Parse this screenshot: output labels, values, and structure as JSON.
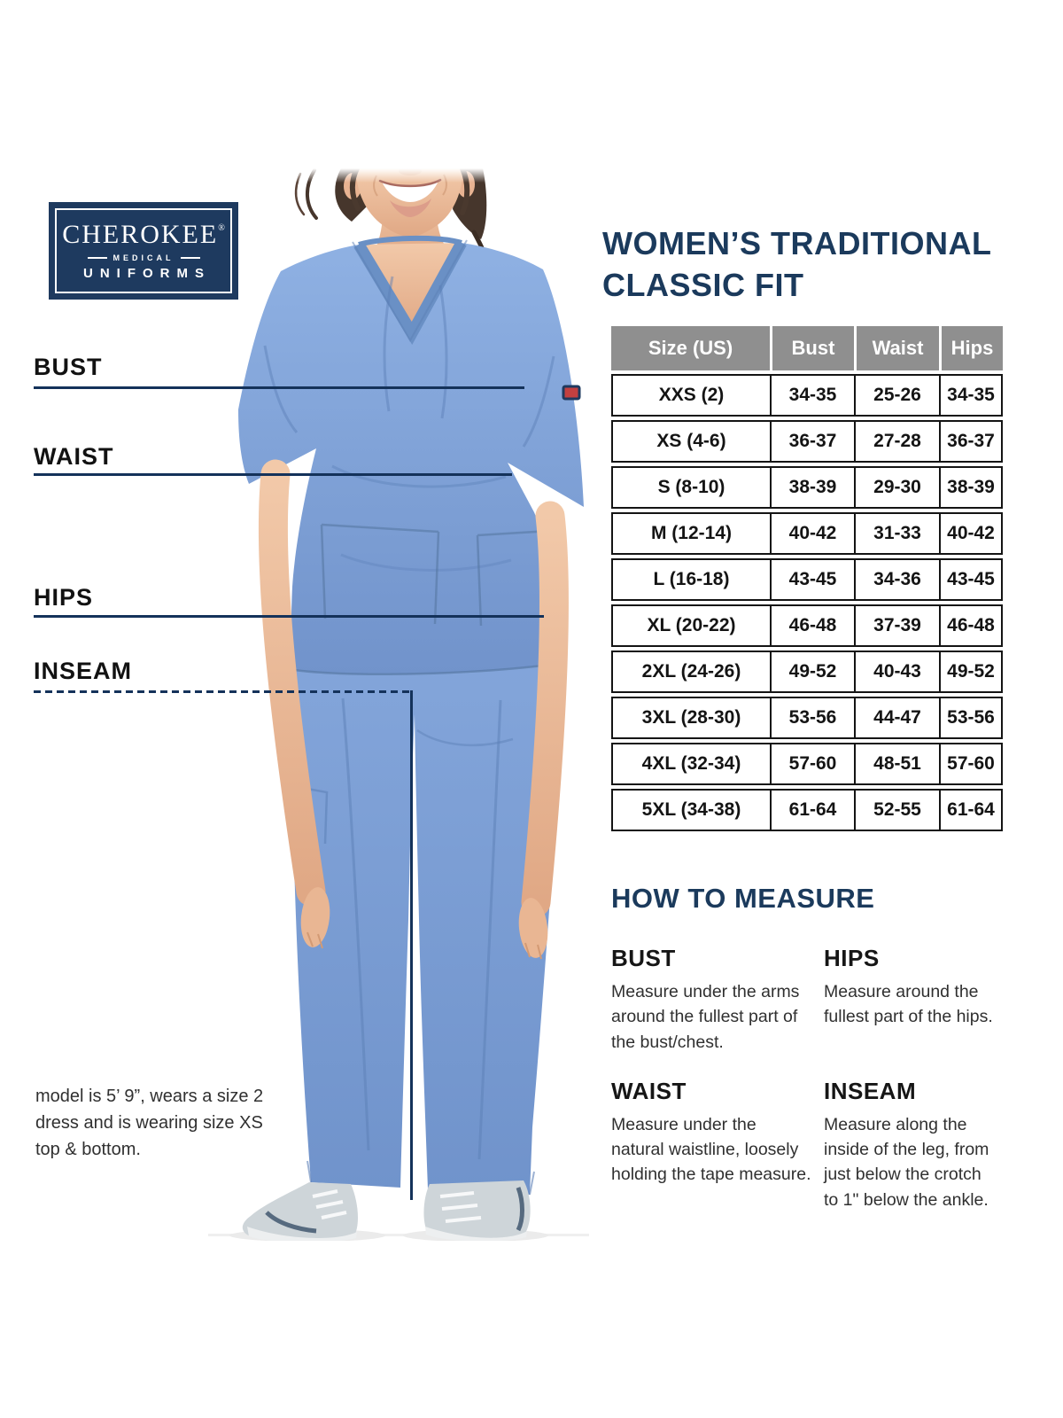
{
  "logo": {
    "brand": "CHEROKEE",
    "reg": "®",
    "medical": "MEDICAL",
    "uniforms": "UNIFORMS"
  },
  "title": {
    "line1": "WOMEN’S TRADITIONAL",
    "line2": "CLASSIC FIT"
  },
  "measurements": {
    "bust": {
      "label": "BUST",
      "line_style": "solid"
    },
    "waist": {
      "label": "WAIST",
      "line_style": "solid"
    },
    "hips": {
      "label": "HIPS",
      "line_style": "solid"
    },
    "inseam": {
      "label": "INSEAM",
      "line_style": "dashed"
    }
  },
  "size_chart": {
    "headers": [
      "Size (US)",
      "Bust",
      "Waist",
      "Hips"
    ],
    "rows": [
      [
        "XXS (2)",
        "34-35",
        "25-26",
        "34-35"
      ],
      [
        "XS (4-6)",
        "36-37",
        "27-28",
        "36-37"
      ],
      [
        "S (8-10)",
        "38-39",
        "29-30",
        "38-39"
      ],
      [
        "M (12-14)",
        "40-42",
        "31-33",
        "40-42"
      ],
      [
        "L (16-18)",
        "43-45",
        "34-36",
        "43-45"
      ],
      [
        "XL (20-22)",
        "46-48",
        "37-39",
        "46-48"
      ],
      [
        "2XL (24-26)",
        "49-52",
        "40-43",
        "49-52"
      ],
      [
        "3XL (28-30)",
        "53-56",
        "44-47",
        "53-56"
      ],
      [
        "4XL (32-34)",
        "57-60",
        "48-51",
        "57-60"
      ],
      [
        "5XL (34-38)",
        "61-64",
        "52-55",
        "61-64"
      ]
    ]
  },
  "how_to_measure": {
    "heading": "HOW TO MEASURE",
    "items": [
      {
        "name": "BUST",
        "text": "Measure under the arms around the fullest part of the bust/chest."
      },
      {
        "name": "HIPS",
        "text": "Measure around the fullest part of the hips."
      },
      {
        "name": "WAIST",
        "text": "Measure under the natural waistline, loosely holding the tape measure."
      },
      {
        "name": "INSEAM",
        "text": "Measure along the inside of the leg, from just below the crotch to 1\" below the ankle."
      }
    ]
  },
  "model_note": "model is 5’ 9”, wears a size 2 dress and is wearing size XS top & bottom.",
  "colors": {
    "accent_navy": "#1b3a5c",
    "line_navy": "#14325a",
    "table_header_gray": "#8f8f8f",
    "scrub_blue": "#7fa3da"
  }
}
